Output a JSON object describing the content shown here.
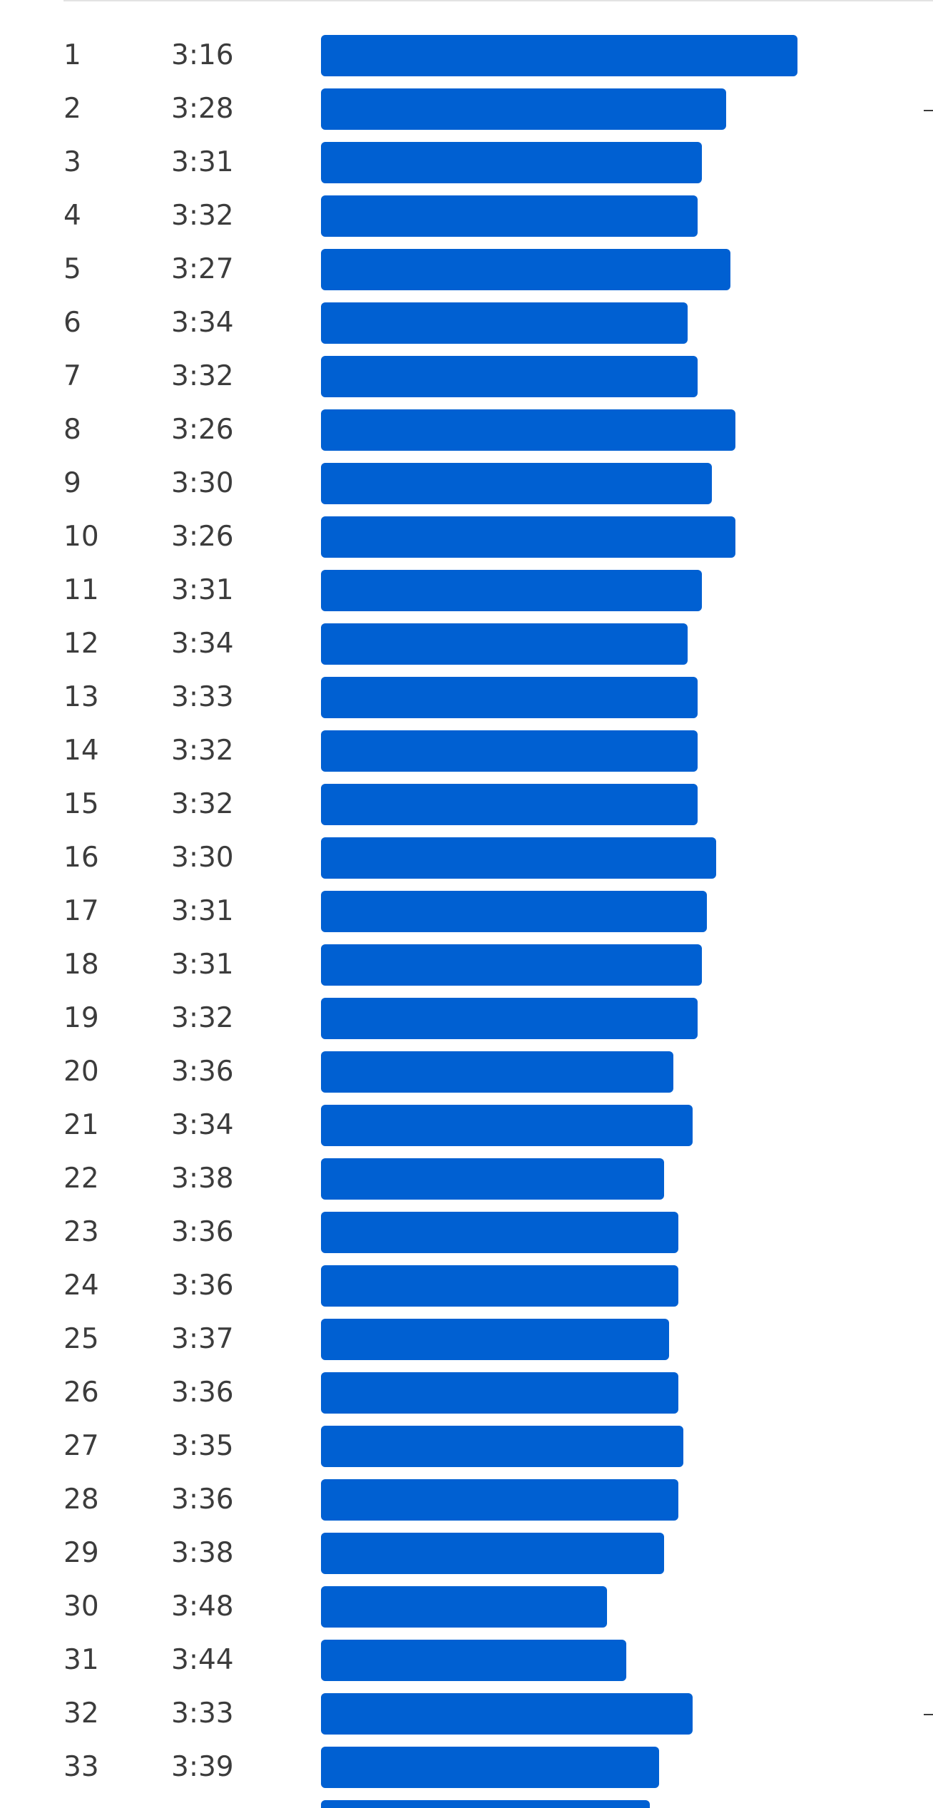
{
  "splits": {
    "bar_color": "#0060d2",
    "rows": [
      {
        "number": "1",
        "pace": "3:16",
        "bar_fraction": 1.0
      },
      {
        "number": "2",
        "pace": "3:28",
        "bar_fraction": 0.85
      },
      {
        "number": "3",
        "pace": "3:31",
        "bar_fraction": 0.8
      },
      {
        "number": "4",
        "pace": "3:32",
        "bar_fraction": 0.79
      },
      {
        "number": "5",
        "pace": "3:27",
        "bar_fraction": 0.86
      },
      {
        "number": "6",
        "pace": "3:34",
        "bar_fraction": 0.77
      },
      {
        "number": "7",
        "pace": "3:32",
        "bar_fraction": 0.79
      },
      {
        "number": "8",
        "pace": "3:26",
        "bar_fraction": 0.87
      },
      {
        "number": "9",
        "pace": "3:30",
        "bar_fraction": 0.82
      },
      {
        "number": "10",
        "pace": "3:26",
        "bar_fraction": 0.87
      },
      {
        "number": "11",
        "pace": "3:31",
        "bar_fraction": 0.8
      },
      {
        "number": "12",
        "pace": "3:34",
        "bar_fraction": 0.77
      },
      {
        "number": "13",
        "pace": "3:33",
        "bar_fraction": 0.79
      },
      {
        "number": "14",
        "pace": "3:32",
        "bar_fraction": 0.79
      },
      {
        "number": "15",
        "pace": "3:32",
        "bar_fraction": 0.79
      },
      {
        "number": "16",
        "pace": "3:30",
        "bar_fraction": 0.83
      },
      {
        "number": "17",
        "pace": "3:31",
        "bar_fraction": 0.81
      },
      {
        "number": "18",
        "pace": "3:31",
        "bar_fraction": 0.8
      },
      {
        "number": "19",
        "pace": "3:32",
        "bar_fraction": 0.79
      },
      {
        "number": "20",
        "pace": "3:36",
        "bar_fraction": 0.74
      },
      {
        "number": "21",
        "pace": "3:34",
        "bar_fraction": 0.78
      },
      {
        "number": "22",
        "pace": "3:38",
        "bar_fraction": 0.72
      },
      {
        "number": "23",
        "pace": "3:36",
        "bar_fraction": 0.75
      },
      {
        "number": "24",
        "pace": "3:36",
        "bar_fraction": 0.75
      },
      {
        "number": "25",
        "pace": "3:37",
        "bar_fraction": 0.73
      },
      {
        "number": "26",
        "pace": "3:36",
        "bar_fraction": 0.75
      },
      {
        "number": "27",
        "pace": "3:35",
        "bar_fraction": 0.76
      },
      {
        "number": "28",
        "pace": "3:36",
        "bar_fraction": 0.75
      },
      {
        "number": "29",
        "pace": "3:38",
        "bar_fraction": 0.72
      },
      {
        "number": "30",
        "pace": "3:48",
        "bar_fraction": 0.6
      },
      {
        "number": "31",
        "pace": "3:44",
        "bar_fraction": 0.64
      },
      {
        "number": "32",
        "pace": "3:33",
        "bar_fraction": 0.78
      },
      {
        "number": "33",
        "pace": "3:39",
        "bar_fraction": 0.71
      },
      {
        "number": "",
        "pace": "",
        "bar_fraction": 0.69
      }
    ]
  }
}
